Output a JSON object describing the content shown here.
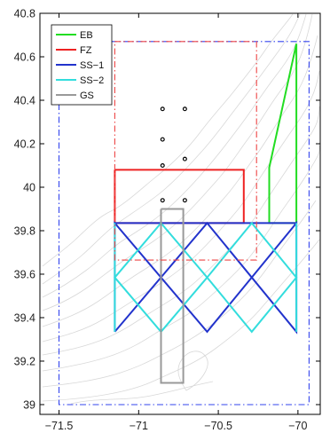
{
  "chart_data": {
    "type": "line",
    "title": "",
    "xlabel": "",
    "ylabel": "",
    "xlim": [
      -71.62,
      -69.86
    ],
    "ylim": [
      38.955,
      40.8
    ],
    "xticks": [
      -71.5,
      -71,
      -70.5,
      -70
    ],
    "xtick_labels": [
      "−71.5",
      "−71",
      "−70.5",
      "−70"
    ],
    "yticks": [
      39,
      39.2,
      39.4,
      39.6,
      39.8,
      40,
      40.2,
      40.4,
      40.6,
      40.8
    ],
    "ytick_labels": [
      "39",
      "39.2",
      "39.4",
      "39.6",
      "39.8",
      "40",
      "40.2",
      "40.4",
      "40.6",
      "40.8"
    ],
    "grid": false,
    "legend_position": "top-left",
    "series": [
      {
        "name": "EB",
        "color": "#22dd22",
        "style": "solid",
        "paths": [
          {
            "x": [
              -70.01,
              -70.18,
              -70.18,
              -70.01,
              -70.01
            ],
            "y": [
              40.66,
              40.09,
              39.835,
              39.835,
              40.66
            ]
          }
        ]
      },
      {
        "name": "FZ",
        "color": "#ee2222",
        "style": "solid",
        "paths": [
          {
            "x": [
              -71.15,
              -70.34,
              -70.34,
              -71.15,
              -71.15
            ],
            "y": [
              40.08,
              40.08,
              39.835,
              39.835,
              40.08
            ]
          }
        ]
      },
      {
        "name": "SS−1",
        "color": "#2233cc",
        "style": "solid",
        "paths": [
          {
            "x": [
              -71.15,
              -71.15,
              -70.57,
              -70.01,
              -70.01,
              -70.57,
              -71.15
            ],
            "y": [
              39.335,
              39.835,
              39.335,
              39.835,
              39.335,
              39.835,
              39.335
            ]
          },
          {
            "x": [
              -71.15,
              -70.01
            ],
            "y": [
              39.835,
              39.835
            ]
          }
        ]
      },
      {
        "name": "SS−2",
        "color": "#33dddd",
        "style": "solid",
        "paths": [
          {
            "x": [
              -71.15,
              -70.86,
              -70.57,
              -70.29,
              -70.01,
              -70.29,
              -70.57,
              -70.86,
              -71.15,
              -70.86,
              -70.57,
              -70.29,
              -70.01,
              -70.29,
              -70.57,
              -70.86,
              -71.15
            ],
            "y": [
              39.585,
              39.835,
              39.585,
              39.835,
              39.585,
              39.335,
              39.585,
              39.335,
              39.585,
              39.835,
              39.585,
              39.835,
              39.585,
              39.335,
              39.585,
              39.335,
              39.585
            ]
          },
          {
            "x": [
              -71.15,
              -71.15
            ],
            "y": [
              39.335,
              39.835
            ]
          },
          {
            "x": [
              -70.01,
              -70.01
            ],
            "y": [
              39.335,
              39.835
            ]
          }
        ]
      },
      {
        "name": "GS",
        "color": "#999999",
        "style": "solid",
        "paths": [
          {
            "x": [
              -70.86,
              -70.72,
              -70.72,
              -70.86,
              -70.86
            ],
            "y": [
              39.9,
              39.9,
              39.1,
              39.1,
              39.9
            ]
          }
        ]
      },
      {
        "name": "",
        "color": "#3344ee",
        "style": "dashdot",
        "paths": [
          {
            "x": [
              -71.5,
              -69.93,
              -69.93,
              -71.5,
              -71.5
            ],
            "y": [
              40.67,
              40.67,
              39.0,
              39.0,
              40.67
            ]
          }
        ]
      },
      {
        "name": "",
        "color": "#ee4444",
        "style": "dashdot",
        "paths": [
          {
            "x": [
              -71.15,
              -70.26,
              -70.26,
              -71.15,
              -71.15
            ],
            "y": [
              40.67,
              40.67,
              39.665,
              39.665,
              40.67
            ]
          }
        ]
      }
    ],
    "markers": {
      "color": "#000000",
      "points": [
        {
          "x": [
            -70.85,
            -70.71,
            -70.85,
            -70.71,
            -70.85,
            -70.71,
            -70.85
          ],
          "y": [
            40.36,
            40.36,
            40.22,
            40.13,
            40.1,
            39.94,
            39.94
          ]
        }
      ]
    },
    "bathymetry_color": "#d8d8d8"
  }
}
